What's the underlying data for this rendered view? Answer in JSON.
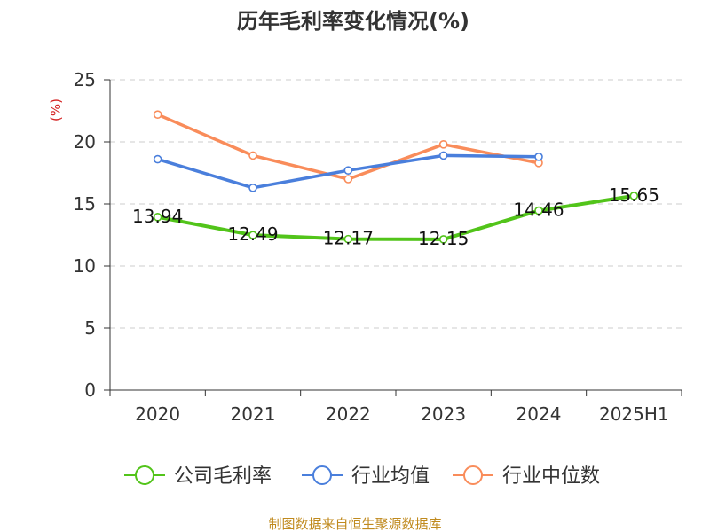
{
  "chart_data": {
    "type": "line",
    "title": "历年毛利率变化情况(%)",
    "ylabel": "(%)",
    "xlabel": "",
    "categories": [
      "2020",
      "2021",
      "2022",
      "2023",
      "2024",
      "2025H1"
    ],
    "ylim": [
      0,
      25
    ],
    "yticks": [
      "0",
      "5",
      "10",
      "15",
      "20",
      "25"
    ],
    "grid": true,
    "legend_position": "bottom",
    "series": [
      {
        "name": "公司毛利率",
        "color": "#52c41a",
        "values": [
          13.94,
          12.49,
          12.17,
          12.15,
          14.46,
          15.65
        ],
        "labels": [
          "13.94",
          "12.49",
          "12.17",
          "12.15",
          "14.46",
          "15.65"
        ],
        "show_labels": true
      },
      {
        "name": "行业均值",
        "color": "#4a7fdc",
        "values": [
          18.6,
          16.3,
          17.7,
          18.9,
          18.8,
          null
        ],
        "show_labels": false
      },
      {
        "name": "行业中位数",
        "color": "#f98c5a",
        "values": [
          22.2,
          18.9,
          17.0,
          19.8,
          18.3,
          null
        ],
        "show_labels": false
      }
    ],
    "footer": "制图数据来自恒生聚源数据库",
    "colors": {
      "ylabel": "#d42020",
      "footer": "#c08a1e",
      "axis": "#333333",
      "grid": "#cccccc"
    }
  }
}
